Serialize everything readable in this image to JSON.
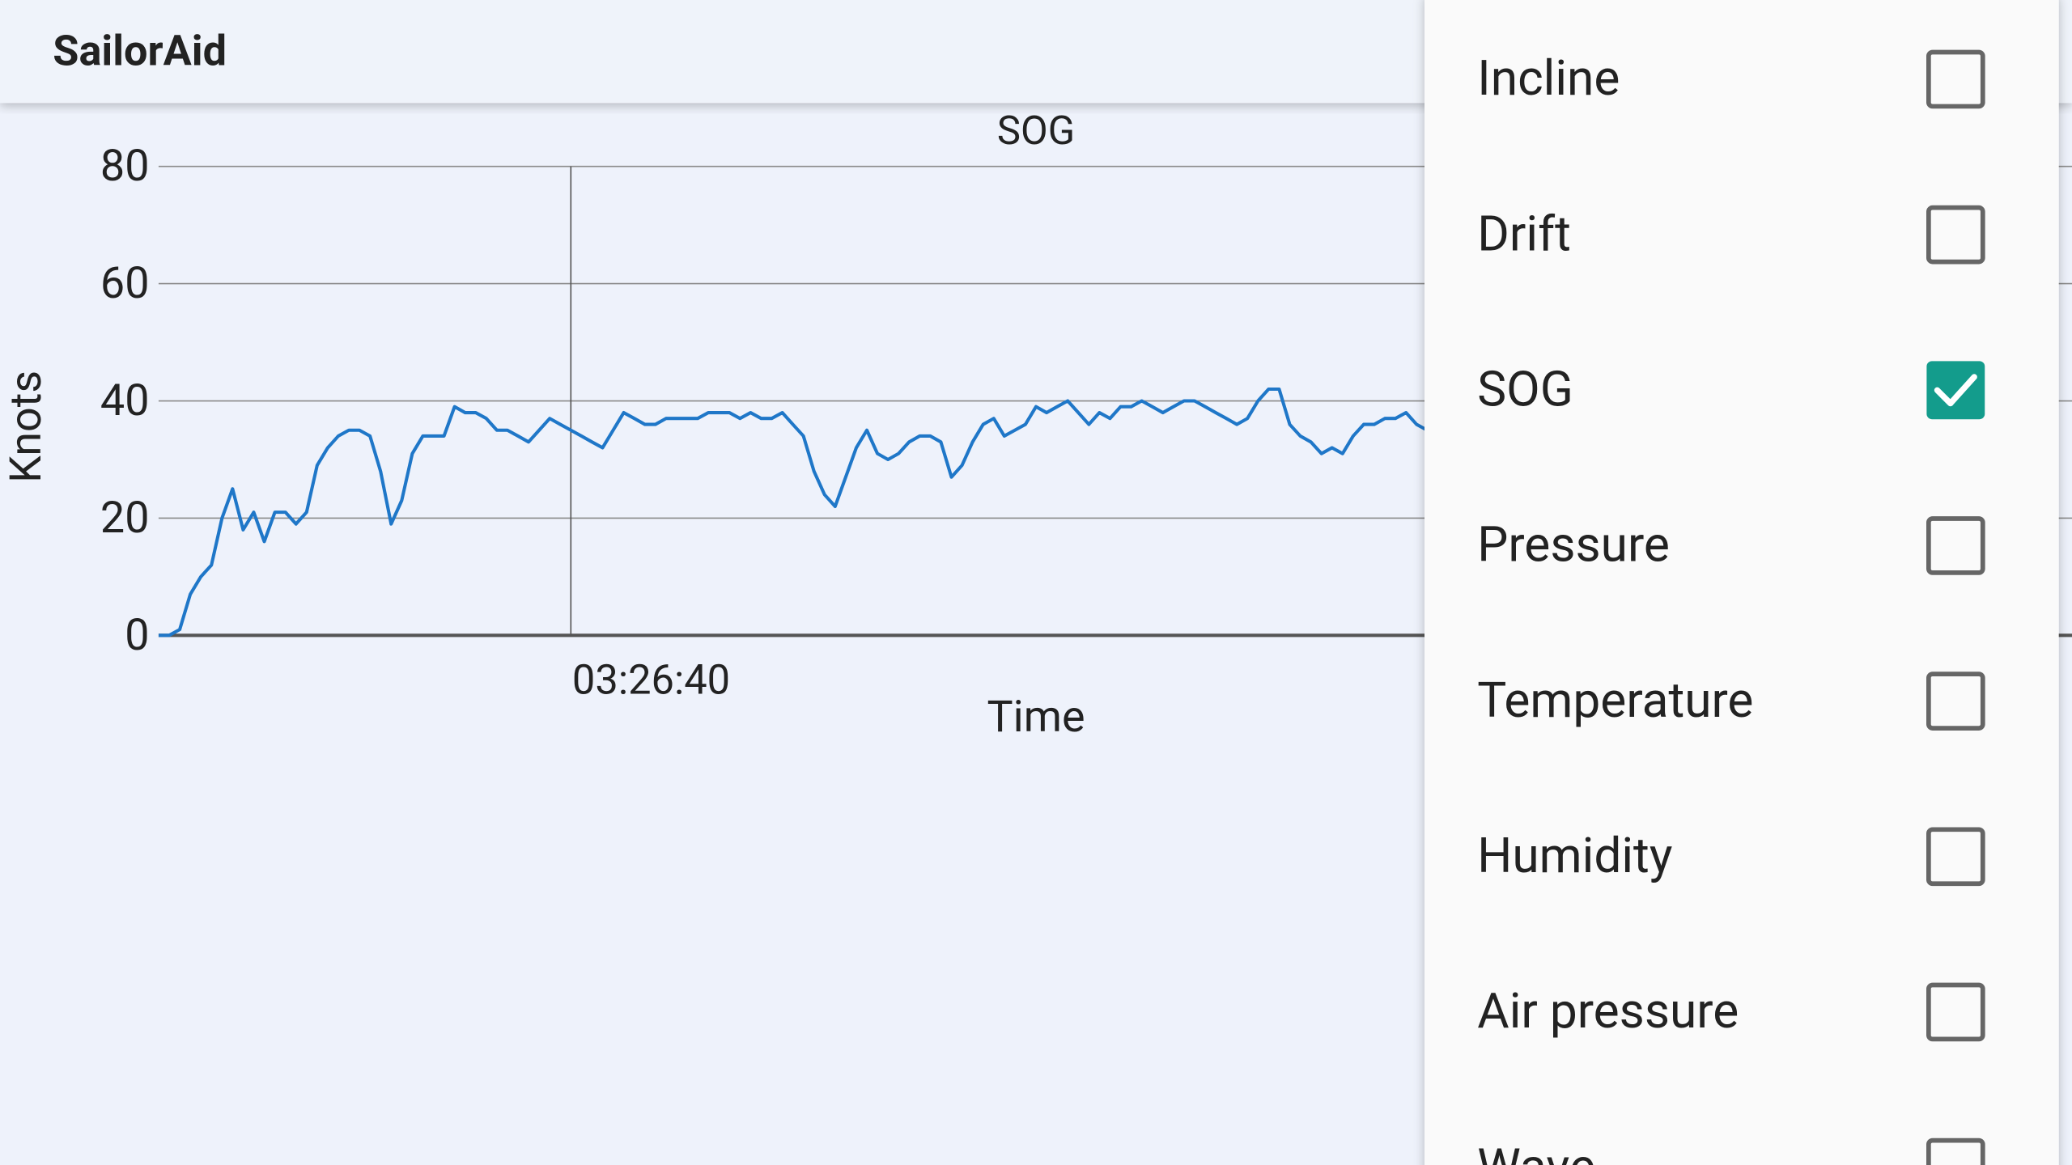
{
  "app_bar": {
    "title": "SailorAid"
  },
  "chart_data": {
    "type": "line",
    "title": "SOG",
    "x_label": "Time",
    "y_label": "Knots",
    "color": "#1f77c8",
    "values": [
      0,
      0,
      1,
      7,
      10,
      12,
      20,
      25,
      18,
      21,
      16,
      21,
      21,
      19,
      21,
      29,
      32,
      34,
      35,
      35,
      34,
      28,
      19,
      23,
      31,
      34,
      34,
      34,
      39,
      38,
      38,
      37,
      35,
      35,
      34,
      33,
      35,
      37,
      36,
      35,
      34,
      33,
      32,
      35,
      38,
      37,
      36,
      36,
      37,
      37,
      37,
      37,
      38,
      38,
      38,
      37,
      38,
      37,
      37,
      38,
      36,
      34,
      28,
      24,
      22,
      27,
      32,
      35,
      31,
      30,
      31,
      33,
      34,
      34,
      33,
      27,
      29,
      33,
      36,
      37,
      34,
      35,
      36,
      39,
      38,
      39,
      40,
      38,
      36,
      38,
      37,
      39,
      39,
      40,
      39,
      38,
      39,
      40,
      40,
      39,
      38,
      37,
      36,
      37,
      40,
      42,
      42,
      36,
      34,
      33,
      31,
      32,
      31,
      34,
      36,
      36,
      37,
      37,
      38,
      36,
      35
    ],
    "xlim": [
      0,
      181
    ],
    "xticks": [
      {
        "value": 39,
        "label": "03:26:40"
      }
    ],
    "ylim": [
      0,
      80
    ],
    "yticks": [
      0,
      20,
      40,
      60,
      80
    ],
    "grid": true
  },
  "menu": {
    "items": [
      {
        "label": "Incline",
        "checked": false
      },
      {
        "label": "Drift",
        "checked": false
      },
      {
        "label": "SOG",
        "checked": true
      },
      {
        "label": "Pressure",
        "checked": false
      },
      {
        "label": "Temperature",
        "checked": false
      },
      {
        "label": "Humidity",
        "checked": false
      },
      {
        "label": "Air pressure",
        "checked": false
      },
      {
        "label": "Wave",
        "checked": false
      }
    ]
  }
}
